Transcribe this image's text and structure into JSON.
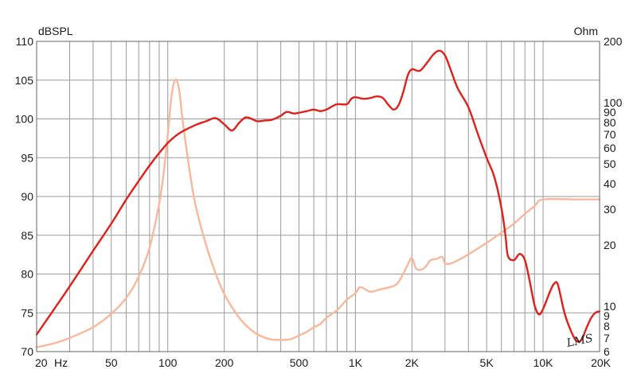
{
  "chart_data": {
    "type": "line",
    "title": "",
    "xlabel": "",
    "left_unit": "dBSPL",
    "right_unit": "Ohm",
    "x_scale": "log",
    "xlim": [
      20,
      20000
    ],
    "ylim_left": [
      70,
      110
    ],
    "ylim_right": [
      6,
      200
    ],
    "right_scale": "log",
    "grid": true,
    "x_ticks": [
      {
        "value": 20,
        "label": "20"
      },
      {
        "value": 50,
        "label": "50"
      },
      {
        "value": 100,
        "label": "100"
      },
      {
        "value": 200,
        "label": "200"
      },
      {
        "value": 500,
        "label": "500"
      },
      {
        "value": 1000,
        "label": "1K"
      },
      {
        "value": 2000,
        "label": "2K"
      },
      {
        "value": 5000,
        "label": "5K"
      },
      {
        "value": 10000,
        "label": "10K"
      },
      {
        "value": 20000,
        "label": "20K"
      }
    ],
    "x_extra_label": "Hz",
    "y_left_ticks": [
      70,
      75,
      80,
      85,
      90,
      95,
      100,
      105,
      110
    ],
    "y_right_ticks": [
      6,
      7,
      8,
      9,
      10,
      20,
      30,
      40,
      50,
      60,
      70,
      80,
      90,
      100,
      200
    ],
    "series": [
      {
        "axis": "left",
        "color": "#e0201a",
        "points": [
          [
            20,
            72.2
          ],
          [
            25,
            75.6
          ],
          [
            30,
            78.4
          ],
          [
            40,
            83.0
          ],
          [
            50,
            86.5
          ],
          [
            60,
            89.6
          ],
          [
            70,
            92.0
          ],
          [
            80,
            94.0
          ],
          [
            90,
            95.6
          ],
          [
            100,
            96.9
          ],
          [
            110,
            97.8
          ],
          [
            120,
            98.4
          ],
          [
            140,
            99.2
          ],
          [
            160,
            99.7
          ],
          [
            180,
            100.1
          ],
          [
            200,
            99.3
          ],
          [
            220,
            98.5
          ],
          [
            240,
            99.5
          ],
          [
            260,
            100.2
          ],
          [
            280,
            100.0
          ],
          [
            300,
            99.7
          ],
          [
            330,
            99.8
          ],
          [
            360,
            99.9
          ],
          [
            400,
            100.4
          ],
          [
            430,
            100.9
          ],
          [
            470,
            100.7
          ],
          [
            500,
            100.8
          ],
          [
            550,
            101.0
          ],
          [
            600,
            101.2
          ],
          [
            650,
            101.0
          ],
          [
            700,
            101.2
          ],
          [
            750,
            101.6
          ],
          [
            800,
            101.9
          ],
          [
            900,
            101.9
          ],
          [
            950,
            102.6
          ],
          [
            1000,
            102.8
          ],
          [
            1100,
            102.6
          ],
          [
            1200,
            102.7
          ],
          [
            1300,
            102.9
          ],
          [
            1400,
            102.7
          ],
          [
            1500,
            101.8
          ],
          [
            1600,
            101.2
          ],
          [
            1700,
            101.8
          ],
          [
            1800,
            103.5
          ],
          [
            1900,
            105.6
          ],
          [
            2000,
            106.4
          ],
          [
            2200,
            106.2
          ],
          [
            2400,
            107.2
          ],
          [
            2600,
            108.3
          ],
          [
            2800,
            108.8
          ],
          [
            3000,
            108.2
          ],
          [
            3200,
            106.5
          ],
          [
            3500,
            104.0
          ],
          [
            4000,
            101.5
          ],
          [
            4500,
            98.0
          ],
          [
            5000,
            95.0
          ],
          [
            5500,
            92.5
          ],
          [
            6000,
            88.5
          ],
          [
            6300,
            85.0
          ],
          [
            6500,
            82.3
          ],
          [
            7000,
            81.8
          ],
          [
            7500,
            82.6
          ],
          [
            8000,
            81.8
          ],
          [
            8500,
            79.0
          ],
          [
            9000,
            76.0
          ],
          [
            9500,
            74.8
          ],
          [
            10000,
            75.5
          ],
          [
            11000,
            78.0
          ],
          [
            11500,
            78.8
          ],
          [
            12000,
            78.6
          ],
          [
            13000,
            75.0
          ],
          [
            14000,
            72.8
          ],
          [
            15000,
            71.4
          ],
          [
            16000,
            71.5
          ],
          [
            17000,
            73.0
          ],
          [
            18000,
            74.3
          ],
          [
            19000,
            75.0
          ],
          [
            20000,
            75.2
          ]
        ]
      },
      {
        "axis": "right",
        "color": "#f7b89c",
        "points": [
          [
            20,
            6.3
          ],
          [
            25,
            6.6
          ],
          [
            30,
            7.0
          ],
          [
            40,
            7.9
          ],
          [
            50,
            9.2
          ],
          [
            60,
            11.0
          ],
          [
            70,
            14.0
          ],
          [
            80,
            19.5
          ],
          [
            90,
            32.0
          ],
          [
            95,
            45.0
          ],
          [
            100,
            70.0
          ],
          [
            105,
            110.0
          ],
          [
            110,
            130.0
          ],
          [
            115,
            115.0
          ],
          [
            120,
            82.0
          ],
          [
            130,
            48.0
          ],
          [
            140,
            32.0
          ],
          [
            160,
            20.0
          ],
          [
            180,
            14.5
          ],
          [
            200,
            11.5
          ],
          [
            230,
            9.3
          ],
          [
            260,
            8.1
          ],
          [
            300,
            7.3
          ],
          [
            350,
            6.9
          ],
          [
            400,
            6.85
          ],
          [
            450,
            6.9
          ],
          [
            500,
            7.2
          ],
          [
            550,
            7.5
          ],
          [
            600,
            7.9
          ],
          [
            650,
            8.2
          ],
          [
            700,
            8.8
          ],
          [
            800,
            9.6
          ],
          [
            900,
            10.8
          ],
          [
            1000,
            11.6
          ],
          [
            1050,
            12.4
          ],
          [
            1100,
            12.3
          ],
          [
            1200,
            11.8
          ],
          [
            1300,
            12.0
          ],
          [
            1400,
            12.2
          ],
          [
            1600,
            12.6
          ],
          [
            1700,
            13.2
          ],
          [
            1800,
            14.5
          ],
          [
            1900,
            16.0
          ],
          [
            2000,
            17.3
          ],
          [
            2100,
            15.4
          ],
          [
            2200,
            15.1
          ],
          [
            2300,
            15.3
          ],
          [
            2400,
            15.9
          ],
          [
            2500,
            16.8
          ],
          [
            2700,
            17.1
          ],
          [
            2900,
            17.5
          ],
          [
            3000,
            16.3
          ],
          [
            3200,
            16.2
          ],
          [
            3500,
            16.8
          ],
          [
            4000,
            18.0
          ],
          [
            5000,
            20.5
          ],
          [
            6000,
            23.0
          ],
          [
            7000,
            25.5
          ],
          [
            8000,
            28.5
          ],
          [
            9000,
            31.0
          ],
          [
            10000,
            33.5
          ],
          [
            15000,
            33.5
          ],
          [
            20000,
            33.5
          ]
        ]
      }
    ],
    "signature": "LMS",
    "colors": {
      "spl": "#e0201a",
      "impedance": "#f7b89c",
      "grid": "#9a9a9a",
      "frame": "#666666"
    }
  }
}
